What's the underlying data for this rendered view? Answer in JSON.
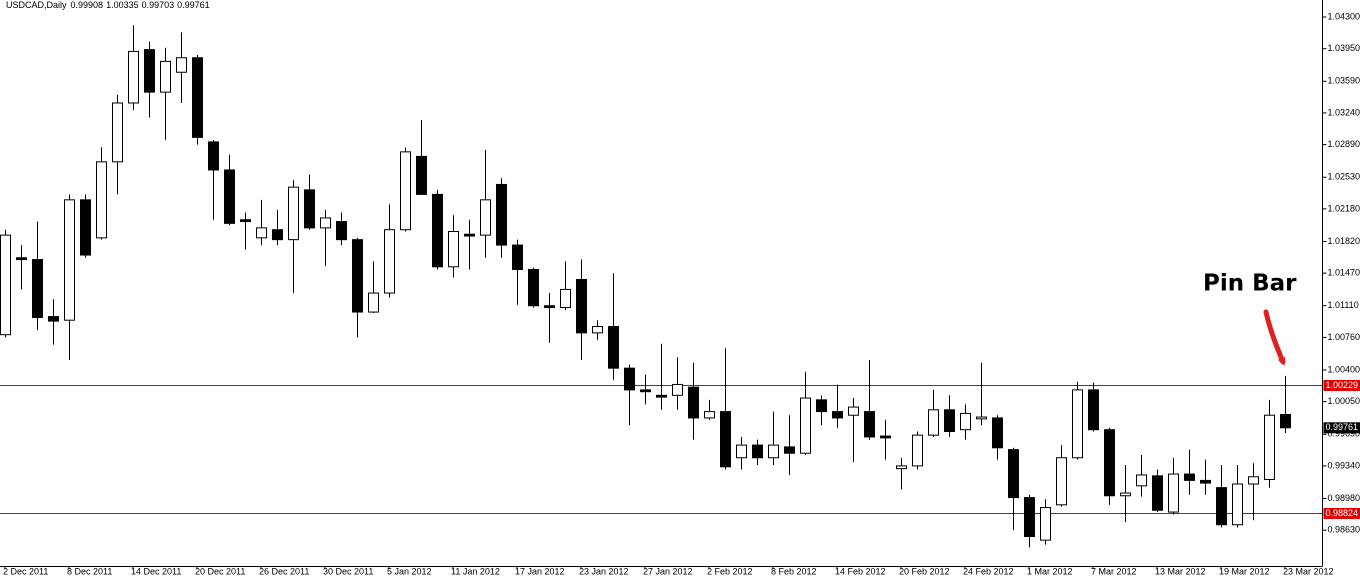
{
  "chart_data": {
    "type": "candlestick",
    "title": "USDCAD,Daily",
    "categories": [
      "2 Dec 2011",
      null,
      null,
      null,
      "8 Dec 2011",
      null,
      null,
      null,
      "14 Dec 2011",
      null,
      null,
      null,
      "20 Dec 2011",
      null,
      null,
      null,
      "26 Dec 2011",
      null,
      null,
      null,
      "30 Dec 2011",
      null,
      null,
      null,
      "5 Jan 2012",
      null,
      null,
      null,
      "11 Jan 2012",
      null,
      null,
      null,
      "17 Jan 2012",
      null,
      null,
      null,
      "23 Jan 2012",
      null,
      null,
      null,
      "27 Jan 2012",
      null,
      null,
      null,
      "2 Feb 2012",
      null,
      null,
      null,
      "8 Feb 2012",
      null,
      null,
      null,
      "14 Feb 2012",
      null,
      null,
      null,
      "20 Feb 2012",
      null,
      null,
      null,
      "24 Feb 2012",
      null,
      null,
      null,
      "1 Mar 2012",
      null,
      null,
      null,
      "7 Mar 2012",
      null,
      null,
      null,
      "13 Mar 2012",
      null,
      null,
      null,
      "19 Mar 2012",
      null,
      null,
      null,
      "23 Mar 2012"
    ],
    "open": [
      1.0079,
      1.0164,
      1.0162,
      1.0099,
      1.0095,
      1.0228,
      1.0186,
      1.027,
      1.0335,
      1.0394,
      1.0347,
      1.0369,
      1.0385,
      1.0292,
      1.0261,
      1.0206,
      1.0186,
      1.0195,
      1.0184,
      1.0239,
      1.0197,
      1.0204,
      1.0184,
      1.0104,
      1.0125,
      1.0195,
      1.0276,
      1.0234,
      1.0154,
      1.019,
      1.0189,
      1.0245,
      1.0178,
      1.0151,
      1.0111,
      1.0109,
      1.014,
      1.0081,
      1.0088,
      1.0042,
      1.0018,
      1.0012,
      1.0012,
      1.0021,
      0.9987,
      0.9994,
      0.9943,
      0.9957,
      0.9943,
      0.9955,
      0.9948,
      1.0007,
      0.9994,
      0.999,
      0.9994,
      0.9967,
      0.9931,
      0.9934,
      0.9968,
      0.9996,
      0.9974,
      0.9986,
      0.9987,
      0.9952,
      0.9899,
      0.9852,
      0.9891,
      0.9943,
      1.0018,
      0.9974,
      0.9901,
      0.9912,
      0.9923,
      0.9883,
      0.9925,
      0.9918,
      0.991,
      0.9869,
      0.9914,
      0.9919,
      0.99908
    ],
    "high": [
      1.0195,
      1.0178,
      1.0204,
      1.0118,
      1.0234,
      1.0234,
      1.0286,
      1.0344,
      1.0421,
      1.0403,
      1.0396,
      1.0413,
      1.0388,
      1.0294,
      1.0278,
      1.0214,
      1.0228,
      1.0217,
      1.025,
      1.0256,
      1.0217,
      1.0214,
      1.0186,
      1.016,
      1.0223,
      1.0286,
      1.0316,
      1.0239,
      1.0211,
      1.0206,
      1.0283,
      1.0252,
      1.0184,
      1.0153,
      1.0125,
      1.016,
      1.0162,
      1.0095,
      1.0147,
      1.0046,
      1.0035,
      1.0069,
      1.0054,
      1.0048,
      1.0007,
      1.0064,
      0.9966,
      0.9963,
      0.9994,
      0.999,
      1.0038,
      1.0012,
      1.0024,
      1.0009,
      1.0051,
      0.9985,
      0.9943,
      0.9972,
      1.0018,
      1.0012,
      1.0002,
      1.0048,
      0.999,
      0.9954,
      0.9902,
      0.9897,
      0.9957,
      1.0027,
      1.0026,
      0.9976,
      0.9935,
      0.9946,
      0.993,
      0.9943,
      0.9952,
      0.9941,
      0.9935,
      0.9935,
      0.9937,
      1.0007,
      1.00335
    ],
    "low": [
      1.0076,
      1.0129,
      1.0084,
      1.0068,
      1.0051,
      1.0164,
      1.0184,
      1.0234,
      1.0327,
      1.0319,
      1.0294,
      1.0335,
      1.0289,
      1.0206,
      1.02,
      1.0173,
      1.0178,
      1.0178,
      1.0125,
      1.0195,
      1.0155,
      1.0178,
      1.0076,
      1.0103,
      1.012,
      1.0193,
      1.0234,
      1.0151,
      1.0142,
      1.0151,
      1.0164,
      1.0164,
      1.0112,
      1.0109,
      1.007,
      1.0106,
      1.0051,
      1.0073,
      1.0029,
      0.9979,
      1.0002,
      0.9996,
      0.9996,
      0.9963,
      0.9985,
      0.993,
      0.993,
      0.9935,
      0.9935,
      0.9924,
      0.9946,
      0.9979,
      0.9976,
      0.9938,
      0.9963,
      0.9941,
      0.9908,
      0.993,
      0.9966,
      0.9966,
      0.9963,
      0.9979,
      0.9941,
      0.9863,
      0.9844,
      0.9847,
      0.9889,
      0.9941,
      0.9972,
      0.9891,
      0.9872,
      0.99,
      0.9883,
      0.988,
      0.9902,
      0.9902,
      0.9866,
      0.9866,
      0.9874,
      0.991,
      0.99703
    ],
    "close": [
      1.0189,
      1.0162,
      1.0098,
      1.0094,
      1.0228,
      1.0167,
      1.027,
      1.0335,
      1.0392,
      1.0347,
      1.0381,
      1.0385,
      1.0297,
      1.0261,
      1.0202,
      1.0204,
      1.0197,
      1.0184,
      1.0242,
      1.0197,
      1.0208,
      1.0184,
      1.0104,
      1.0125,
      1.0195,
      1.0281,
      1.0234,
      1.0154,
      1.0193,
      1.0188,
      1.0228,
      1.0178,
      1.0151,
      1.0111,
      1.0109,
      1.0129,
      1.0081,
      1.0088,
      1.0042,
      1.0018,
      1.0016,
      1.001,
      1.0024,
      0.9987,
      0.9994,
      0.9933,
      0.9957,
      0.9943,
      0.9957,
      0.9948,
      1.0009,
      0.9994,
      0.9987,
      0.9999,
      0.9966,
      0.9965,
      0.9934,
      0.9968,
      0.9996,
      0.9972,
      0.9992,
      0.9988,
      0.9954,
      0.9899,
      0.9856,
      0.9888,
      0.9943,
      1.0018,
      0.9974,
      0.9901,
      0.9904,
      0.9924,
      0.9885,
      0.9925,
      0.9918,
      0.9915,
      0.9869,
      0.9914,
      0.9922,
      0.999,
      0.99761
    ],
    "up_color": "#ffffff",
    "down_color": "#000000",
    "wick_color": "#000000",
    "ylim": [
      0.98234,
      1.04488
    ],
    "yticks": [
      {
        "value": 1.043,
        "label": "1.04300"
      },
      {
        "value": 1.0395,
        "label": "1.03950"
      },
      {
        "value": 1.0359,
        "label": "1.03590"
      },
      {
        "value": 1.0324,
        "label": "1.03240"
      },
      {
        "value": 1.0289,
        "label": "1.02890"
      },
      {
        "value": 1.0253,
        "label": "1.02530"
      },
      {
        "value": 1.0218,
        "label": "1.02180"
      },
      {
        "value": 1.0182,
        "label": "1.01820"
      },
      {
        "value": 1.0147,
        "label": "1.01470"
      },
      {
        "value": 1.0111,
        "label": "1.01110"
      },
      {
        "value": 1.0076,
        "label": "1.00760"
      },
      {
        "value": 1.004,
        "label": "1.00400"
      },
      {
        "value": 1.0005,
        "label": "1.00050"
      },
      {
        "value": 0.9969,
        "label": "0.99690"
      },
      {
        "value": 0.9934,
        "label": "0.99340"
      },
      {
        "value": 0.9898,
        "label": "0.98980"
      },
      {
        "value": 0.9863,
        "label": "0.98630"
      }
    ],
    "grid": false,
    "hlines": [
      {
        "value": 1.00229,
        "color": "#e00000"
      },
      {
        "value": 0.98824,
        "color": "#e00000"
      }
    ],
    "current_price_color": "#000000",
    "annotations": [
      {
        "text": "Pin Bar",
        "color": "#000000",
        "arrow_color": "#e02020"
      }
    ]
  }
}
